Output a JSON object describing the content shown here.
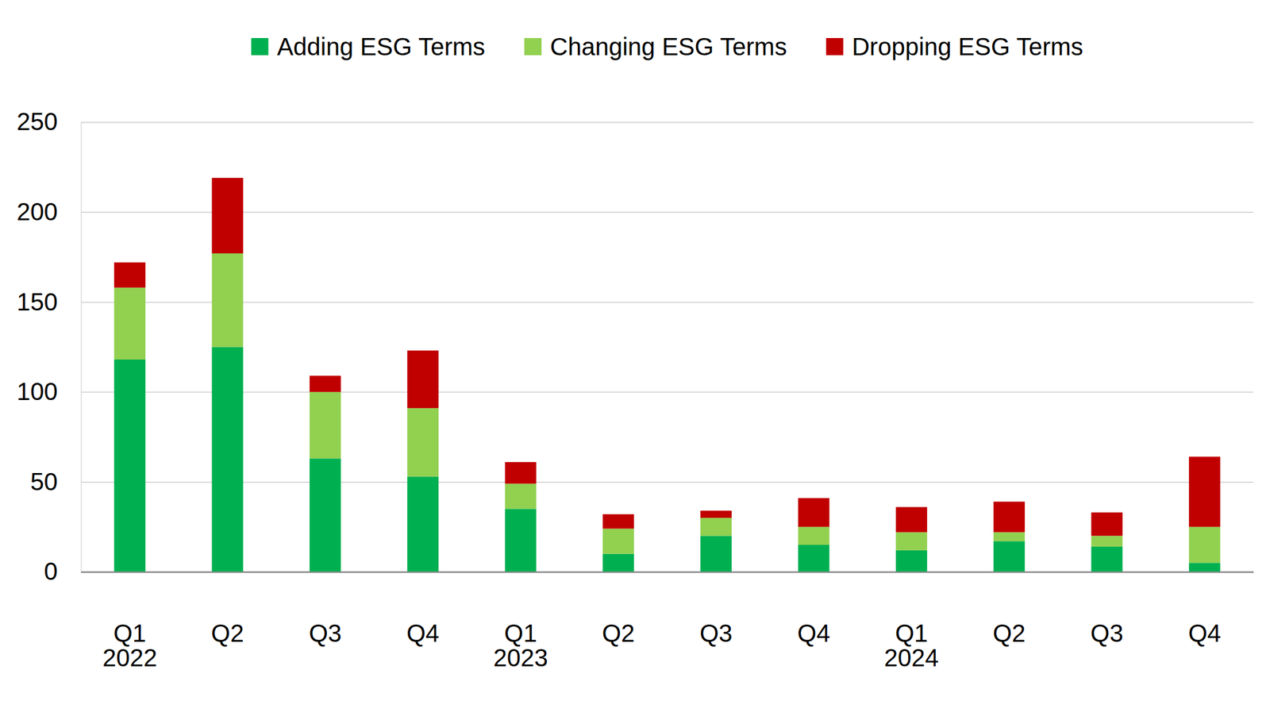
{
  "chart_data": {
    "type": "bar",
    "stacked": true,
    "grid": true,
    "legend": "top",
    "categories": [
      "Q1\n2022",
      "Q2",
      "Q3",
      "Q4",
      "Q1\n2023",
      "Q2",
      "Q3",
      "Q4",
      "Q1\n2024",
      "Q2",
      "Q3",
      "Q4"
    ],
    "series": [
      {
        "name": "Adding ESG Terms",
        "color": "#00b050",
        "values": [
          118,
          125,
          63,
          53,
          35,
          10,
          20,
          15,
          12,
          17,
          14,
          5
        ]
      },
      {
        "name": "Changing ESG Terms",
        "color": "#92d050",
        "values": [
          40,
          52,
          37,
          38,
          14,
          14,
          10,
          10,
          10,
          5,
          6,
          20
        ]
      },
      {
        "name": "Dropping ESG Terms",
        "color": "#c00000",
        "values": [
          14,
          42,
          9,
          32,
          12,
          8,
          4,
          16,
          14,
          17,
          13,
          39
        ]
      }
    ],
    "ylim": [
      0,
      250
    ],
    "yticks": [
      0,
      50,
      100,
      150,
      200,
      250
    ]
  }
}
